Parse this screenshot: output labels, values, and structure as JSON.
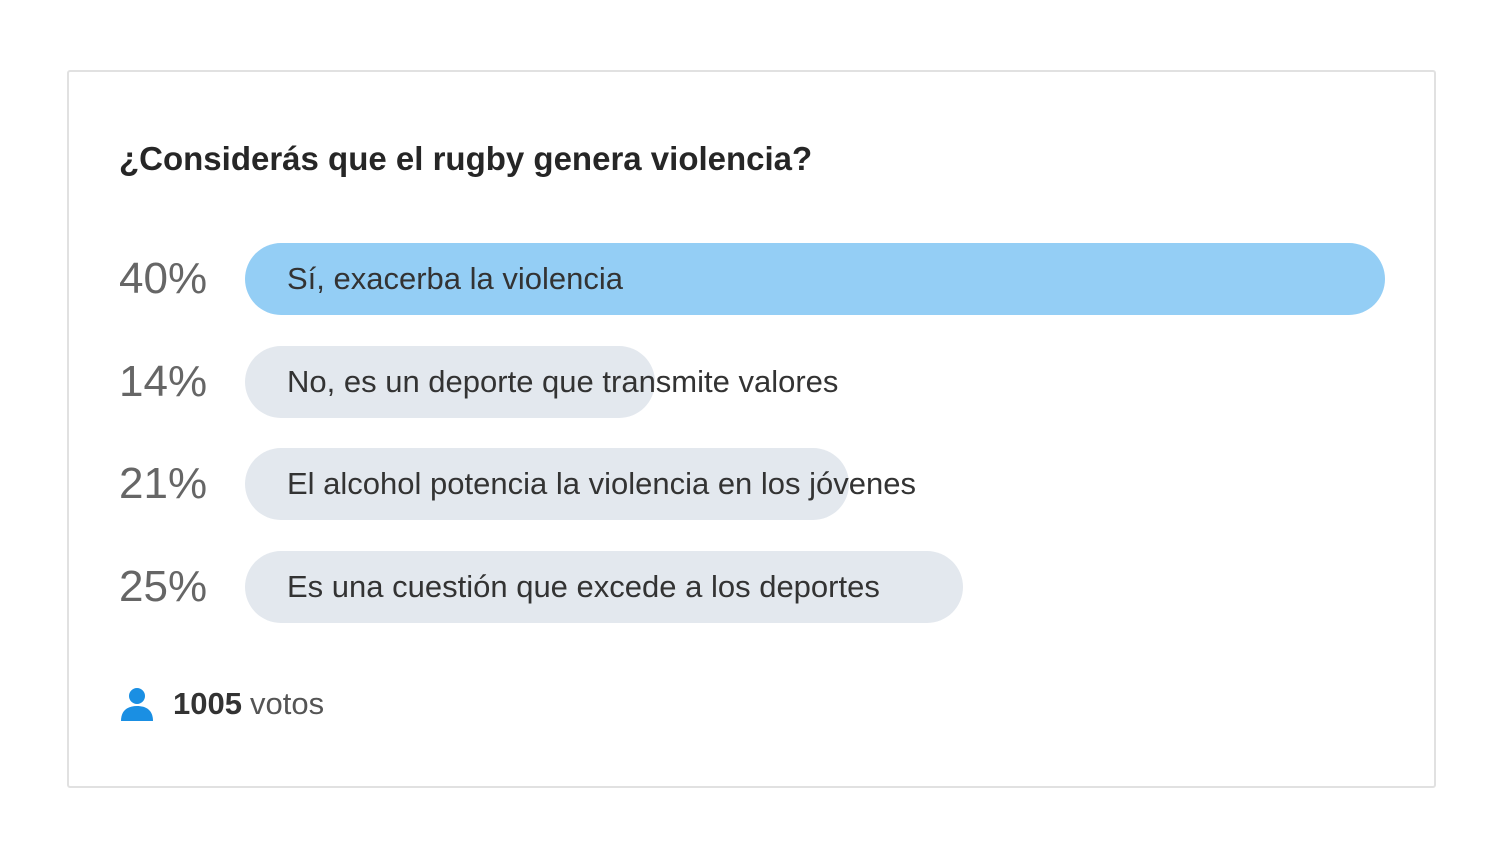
{
  "poll": {
    "question": "¿Considerás que el rugby genera violencia?",
    "options": [
      {
        "percent_label": "40%",
        "label": "Sí, exacerba la violencia",
        "fill_fraction": 1.0,
        "leading": true
      },
      {
        "percent_label": "14%",
        "label": "No, es un deporte que transmite valores",
        "fill_fraction": 0.36,
        "leading": false
      },
      {
        "percent_label": "21%",
        "label": "El alcohol potencia la violencia en los jóvenes",
        "fill_fraction": 0.53,
        "leading": false
      },
      {
        "percent_label": "25%",
        "label": "Es una cuestión que excede a los deportes",
        "fill_fraction": 0.63,
        "leading": false
      }
    ],
    "votes": {
      "count": "1005",
      "unit": "votos",
      "icon": "user-icon"
    }
  },
  "colors": {
    "leading_fill": "#94cef5",
    "other_fill": "#e3e8ee",
    "icon": "#1a8fe3"
  }
}
